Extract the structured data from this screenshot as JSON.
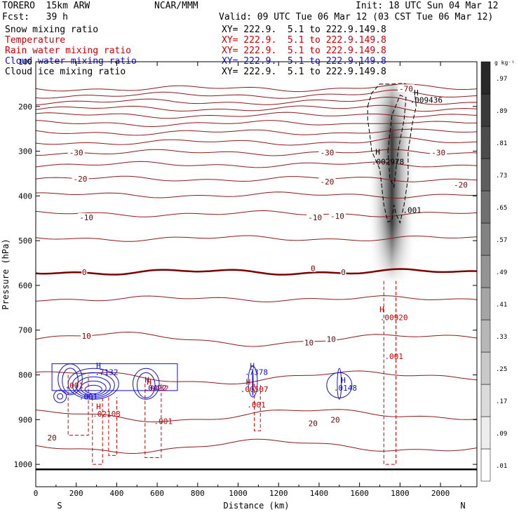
{
  "header": {
    "model": "TORERO  15km ARW",
    "org": "NCAR/MMM",
    "init": "Init: 18 UTC Sun 04 Mar 12",
    "fcst": "Fcst:   39 h",
    "valid": "Valid: 09 UTC Tue 06 Mar 12 (03 CST Tue 06 Mar 12)"
  },
  "legend": [
    {
      "name": "Snow mixing ratio",
      "xy": "XY= 222.9.  5.1 to 222.9.149.8",
      "color": "#000000"
    },
    {
      "name": "Temperature",
      "xy": "XY= 222.9.  5.1 to 222.9.149.8",
      "color": "#cc0000"
    },
    {
      "name": "Rain water mixing ratio",
      "xy": "XY= 222.9.  5.1 to 222.9.149.8",
      "color": "#cc0000"
    },
    {
      "name": "Cloud water mixing ratio",
      "xy": "XY= 222.9.  5.1 to 222.9.149.8",
      "color": "#1111cc"
    },
    {
      "name": "Cloud ice mixing ratio",
      "xy": "XY= 222.9.  5.1 to 222.9.149.8",
      "color": "#000000"
    }
  ],
  "chart_data": {
    "type": "contour cross-section",
    "xlabel": "Distance (km)",
    "ylabel": "Pressure (hPa)",
    "xlim": [
      0,
      2180
    ],
    "ylim": [
      1050,
      100
    ],
    "x_ticks": [
      "0",
      "200",
      "400",
      "600",
      "800",
      "1000",
      "1200",
      "1400",
      "1600",
      "1800",
      "2000"
    ],
    "x_tick_values": [
      0,
      200,
      400,
      600,
      800,
      1000,
      1200,
      1400,
      1600,
      1800,
      2000
    ],
    "y_ticks": [
      "200",
      "300",
      "400",
      "500",
      "600",
      "700",
      "800",
      "900",
      "1000"
    ],
    "y_tick_values": [
      200,
      300,
      400,
      500,
      600,
      700,
      800,
      900,
      1000
    ],
    "y_top_label": "100",
    "left_end": "S",
    "right_end": "N",
    "colorbar": {
      "unit": "g kg⁻¹",
      "labels": [
        ".01",
        ".09",
        ".17",
        ".25",
        ".33",
        ".41",
        ".49",
        ".57",
        ".65",
        ".73",
        ".81",
        ".89",
        ".97"
      ]
    },
    "temperature_contours": {
      "interval": 5,
      "isotherms": [
        {
          "t": -70,
          "p": 160
        },
        {
          "t": -65,
          "p": 175
        },
        {
          "t": -60,
          "p": 190
        },
        {
          "t": -55,
          "p": 205
        },
        {
          "t": -50,
          "p": 220
        },
        {
          "t": -45,
          "p": 238
        },
        {
          "t": -40,
          "p": 258
        },
        {
          "t": -35,
          "p": 280
        },
        {
          "t": -30,
          "p": 303
        },
        {
          "t": -25,
          "p": 330
        },
        {
          "t": -20,
          "p": 362
        },
        {
          "t": -15,
          "p": 398
        },
        {
          "t": -10,
          "p": 440
        },
        {
          "t": -5,
          "p": 495
        },
        {
          "t": 0,
          "p": 570
        },
        {
          "t": 5,
          "p": 630
        },
        {
          "t": 10,
          "p": 720
        },
        {
          "t": 15,
          "p": 805
        },
        {
          "t": 20,
          "p": 890
        },
        {
          "t": 25,
          "p": 960
        }
      ],
      "labels": [
        {
          "text": "-70",
          "x": 1830,
          "p": 160
        },
        {
          "text": "-30",
          "x": 200,
          "p": 303
        },
        {
          "text": "-30",
          "x": 1440,
          "p": 303
        },
        {
          "text": "-30",
          "x": 1990,
          "p": 303
        },
        {
          "text": "-20",
          "x": 220,
          "p": 362
        },
        {
          "text": "-20",
          "x": 1440,
          "p": 368
        },
        {
          "text": "-20",
          "x": 2100,
          "p": 375
        },
        {
          "text": "-10",
          "x": 250,
          "p": 448
        },
        {
          "text": "-10",
          "x": 1380,
          "p": 448
        },
        {
          "text": "-10",
          "x": 1490,
          "p": 445
        },
        {
          "text": "0",
          "x": 240,
          "p": 570
        },
        {
          "text": "0",
          "x": 1370,
          "p": 562
        },
        {
          "text": "0",
          "x": 1520,
          "p": 570
        },
        {
          "text": "10",
          "x": 250,
          "p": 713
        },
        {
          "text": "10",
          "x": 1350,
          "p": 728
        },
        {
          "text": "10",
          "x": 1460,
          "p": 720
        },
        {
          "text": "20",
          "x": 1370,
          "p": 908
        },
        {
          "text": "20",
          "x": 1480,
          "p": 900
        },
        {
          "text": "20",
          "x": 80,
          "p": 940
        }
      ]
    },
    "annotations": [
      {
        "text": "H",
        "x": 1880,
        "p": 175,
        "color": "#000000"
      },
      {
        "text": ".009436",
        "x": 1930,
        "p": 192,
        "color": "#000000"
      },
      {
        "text": "H",
        "x": 1690,
        "p": 308,
        "color": "#000000"
      },
      {
        "text": ".002978",
        "x": 1740,
        "p": 330,
        "color": "#000000"
      },
      {
        "text": ".001",
        "x": 1860,
        "p": 438,
        "color": "#000000"
      },
      {
        "text": "H",
        "x": 1710,
        "p": 660,
        "color": "#cc0000"
      },
      {
        "text": ".00920",
        "x": 1770,
        "p": 678,
        "color": "#cc0000"
      },
      {
        "text": ".001",
        "x": 1770,
        "p": 765,
        "color": "#cc0000"
      },
      {
        "text": "H",
        "x": 310,
        "p": 785,
        "color": "#1111cc"
      },
      {
        "text": ".7132",
        "x": 350,
        "p": 800,
        "color": "#1111cc"
      },
      {
        "text": "H",
        "x": 1070,
        "p": 786,
        "color": "#1111cc"
      },
      {
        "text": ".7378",
        "x": 1090,
        "p": 800,
        "color": "#1111cc"
      },
      {
        "text": "H",
        "x": 550,
        "p": 817,
        "color": "#1111cc"
      },
      {
        "text": ".0422",
        "x": 590,
        "p": 835,
        "color": "#1111cc"
      },
      {
        "text": "H",
        "x": 1520,
        "p": 818,
        "color": "#1111cc"
      },
      {
        "text": ".0148",
        "x": 1530,
        "p": 835,
        "color": "#1111cc"
      },
      {
        "text": ".001",
        "x": 190,
        "p": 830,
        "color": "#cc0000"
      },
      {
        "text": ".001",
        "x": 260,
        "p": 855,
        "color": "#1111cc"
      },
      {
        "text": "H",
        "x": 1050,
        "p": 822,
        "color": "#cc0000"
      },
      {
        "text": ".00507",
        "x": 1080,
        "p": 838,
        "color": "#cc0000"
      },
      {
        "text": "H",
        "x": 560,
        "p": 822,
        "color": "#cc0000"
      },
      {
        "text": ".0432",
        "x": 600,
        "p": 836,
        "color": "#cc0000"
      },
      {
        "text": ".001",
        "x": 1090,
        "p": 873,
        "color": "#cc0000"
      },
      {
        "text": "H",
        "x": 310,
        "p": 877,
        "color": "#cc0000"
      },
      {
        "text": ".02103",
        "x": 350,
        "p": 893,
        "color": "#cc0000"
      },
      {
        "text": ".001",
        "x": 630,
        "p": 910,
        "color": "#cc0000"
      }
    ],
    "surface_pressure": 1005
  }
}
